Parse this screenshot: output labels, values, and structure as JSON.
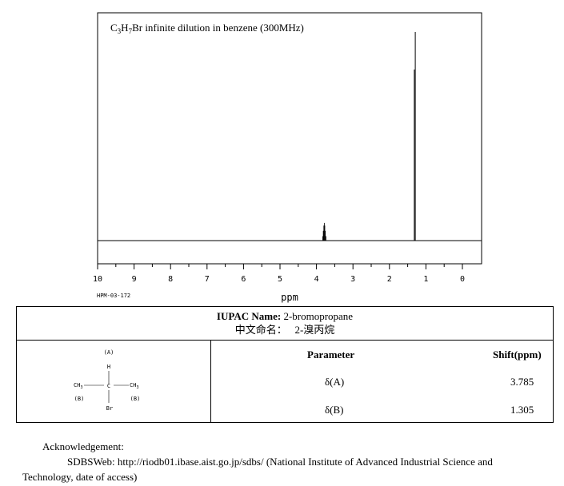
{
  "chart_data": {
    "type": "line",
    "title": "C3H7Br infinite dilution in benzene (300MHz)",
    "xlabel": "ppm",
    "ylabel": "",
    "xlim": [
      10,
      0
    ],
    "ylim": [
      0,
      1
    ],
    "x_ticks": [
      "10",
      "9",
      "8",
      "7",
      "6",
      "5",
      "4",
      "3",
      "2",
      "1",
      "0"
    ],
    "grid": false,
    "peaks": [
      {
        "shift": 3.785,
        "height": 0.085,
        "label": "A"
      },
      {
        "shift": 1.305,
        "height": 1.0,
        "label": "B"
      }
    ]
  },
  "spectrum_title": {
    "formula_a": "C",
    "sub_1": "3",
    "formula_b": "H",
    "sub_2": "7",
    "formula_c": "Br infinite dilution in benzene (300MHz)"
  },
  "spectrum_code": "HPM-03-172",
  "compound": {
    "iupac_label": "IUPAC Name:",
    "iupac_name": "2-bromopropane",
    "cn_label": "中文命名：",
    "cn_name": "2-溴丙烷"
  },
  "structure": {
    "label_a": "(A)",
    "h": "H",
    "ch3_left": "CH",
    "ch3_right": "CH",
    "sub_3": "3",
    "c": "C",
    "br": "Br",
    "label_b_left": "(B)",
    "label_b_right": "(B)"
  },
  "table": {
    "param_header": "Parameter",
    "shift_header": "Shift(ppm)",
    "rows": [
      {
        "param": "δ(A)",
        "shift": "3.785"
      },
      {
        "param": "δ(B)",
        "shift": "1.305"
      }
    ]
  },
  "acknowledgement": {
    "heading": "Acknowledgement:",
    "line1": "SDBSWeb: http://riodb01.ibase.aist.go.jp/sdbs/ (National Institute of Advanced Industrial Science and",
    "line2": "Technology, date of access)"
  }
}
